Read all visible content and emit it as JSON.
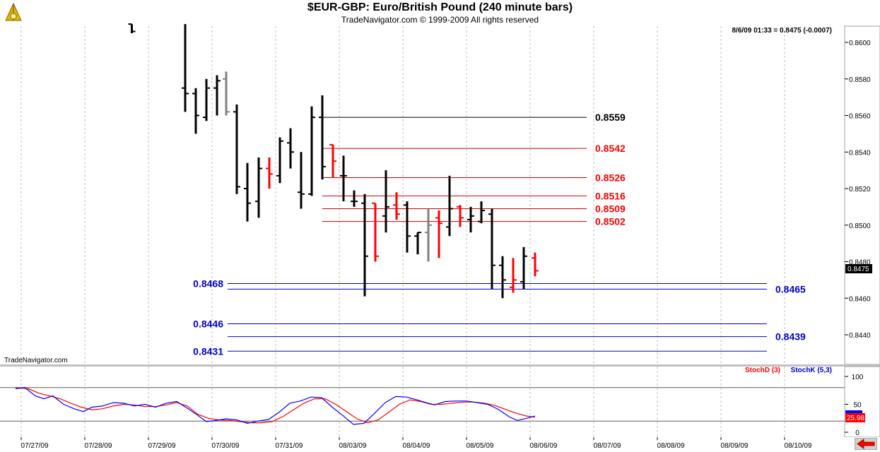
{
  "header": {
    "title": "$EUR-GBP:  Euro/British Pound  (240 minute bars)",
    "copyright": "TradeNavigator.com © 1999-2009 All rights reserved"
  },
  "price_panel": {
    "readout": "8/6/09 01:33 = 0.8475 (-0.0007)",
    "watermark": "TradeNavigator.com",
    "last_price_label": "0.8475"
  },
  "stoch_panel": {
    "legend_d": "StochD (3)",
    "legend_k": "StochK (5,3)",
    "last_value_label": "25.98"
  },
  "colors": {
    "up_bar": "#000000",
    "down_bar": "#ff0000",
    "neutral_bar": "#808080",
    "resistance": "#cc0000",
    "support": "#0000cc",
    "stoch_d": "#ff0000",
    "stoch_k": "#0000ff"
  },
  "chart_data": [
    {
      "type": "ohlc",
      "title": "$EUR-GBP:  Euro/British Pound  (240 minute bars)",
      "yticks": [
        "0.8600",
        "0.8580",
        "0.8560",
        "0.8540",
        "0.8520",
        "0.8500",
        "0.8480",
        "0.8460",
        "0.8440"
      ],
      "ylim": [
        0.842,
        0.861
      ],
      "xticks": [
        "07/27/09",
        "07/28/09",
        "07/29/09",
        "07/30/09",
        "07/31/09",
        "08/03/09",
        "08/04/09",
        "08/05/09",
        "08/06/09",
        "08/07/09",
        "08/08/09",
        "08/09/09",
        "08/10/09"
      ],
      "bars": [
        {
          "x": 186.5,
          "o": 0.861,
          "h": 0.861,
          "l": 0.8605,
          "c": 0.8606,
          "color": "black"
        },
        {
          "x": 262,
          "o": 0.8575,
          "h": 0.861,
          "l": 0.8562,
          "c": 0.8572,
          "color": "black"
        },
        {
          "x": 277,
          "o": 0.8572,
          "h": 0.8575,
          "l": 0.855,
          "c": 0.856,
          "color": "black"
        },
        {
          "x": 292,
          "o": 0.8559,
          "h": 0.858,
          "l": 0.8557,
          "c": 0.8575,
          "color": "black"
        },
        {
          "x": 307,
          "o": 0.8575,
          "h": 0.8582,
          "l": 0.856,
          "c": 0.8579,
          "color": "black"
        },
        {
          "x": 320,
          "o": 0.858,
          "h": 0.8584,
          "l": 0.856,
          "c": 0.8562,
          "color": "gray"
        },
        {
          "x": 335,
          "o": 0.8562,
          "h": 0.8566,
          "l": 0.8517,
          "c": 0.8521,
          "color": "black"
        },
        {
          "x": 350,
          "o": 0.852,
          "h": 0.8534,
          "l": 0.8502,
          "c": 0.8512,
          "color": "black"
        },
        {
          "x": 366,
          "o": 0.8513,
          "h": 0.8537,
          "l": 0.8504,
          "c": 0.8531,
          "color": "black"
        },
        {
          "x": 381,
          "o": 0.8531,
          "h": 0.8537,
          "l": 0.852,
          "c": 0.8528,
          "color": "red"
        },
        {
          "x": 396,
          "o": 0.8527,
          "h": 0.8548,
          "l": 0.8523,
          "c": 0.8546,
          "color": "black"
        },
        {
          "x": 411,
          "o": 0.8545,
          "h": 0.8553,
          "l": 0.8531,
          "c": 0.854,
          "color": "black"
        },
        {
          "x": 426,
          "o": 0.8518,
          "h": 0.854,
          "l": 0.8509,
          "c": 0.8517,
          "color": "black"
        },
        {
          "x": 441,
          "o": 0.8517,
          "h": 0.8565,
          "l": 0.8516,
          "c": 0.8559,
          "color": "black"
        },
        {
          "x": 456,
          "o": 0.8559,
          "h": 0.8571,
          "l": 0.8525,
          "c": 0.8532,
          "color": "black"
        },
        {
          "x": 471,
          "o": 0.8544,
          "h": 0.8544,
          "l": 0.8526,
          "c": 0.8535,
          "color": "red"
        },
        {
          "x": 486,
          "o": 0.8527,
          "h": 0.8538,
          "l": 0.8513,
          "c": 0.8527,
          "color": "black"
        },
        {
          "x": 501,
          "o": 0.8513,
          "h": 0.8519,
          "l": 0.851,
          "c": 0.8513,
          "color": "black"
        },
        {
          "x": 516,
          "o": 0.8512,
          "h": 0.8517,
          "l": 0.8461,
          "c": 0.8483,
          "color": "black"
        },
        {
          "x": 531,
          "o": 0.8512,
          "h": 0.8512,
          "l": 0.848,
          "c": 0.8483,
          "color": "red"
        },
        {
          "x": 546,
          "o": 0.8505,
          "h": 0.853,
          "l": 0.8496,
          "c": 0.851,
          "color": "black"
        },
        {
          "x": 561,
          "o": 0.8511,
          "h": 0.8518,
          "l": 0.8503,
          "c": 0.8506,
          "color": "red"
        },
        {
          "x": 576,
          "o": 0.8511,
          "h": 0.8513,
          "l": 0.8485,
          "c": 0.8494,
          "color": "black"
        },
        {
          "x": 591,
          "o": 0.8494,
          "h": 0.8496,
          "l": 0.8484,
          "c": 0.8496,
          "color": "black"
        },
        {
          "x": 606,
          "o": 0.8496,
          "h": 0.8509,
          "l": 0.848,
          "c": 0.85,
          "color": "gray"
        },
        {
          "x": 621,
          "o": 0.8504,
          "h": 0.8508,
          "l": 0.8482,
          "c": 0.8501,
          "color": "red"
        },
        {
          "x": 636,
          "o": 0.8499,
          "h": 0.8527,
          "l": 0.8494,
          "c": 0.8509,
          "color": "black"
        },
        {
          "x": 651,
          "o": 0.851,
          "h": 0.8511,
          "l": 0.8499,
          "c": 0.8504,
          "color": "red"
        },
        {
          "x": 666,
          "o": 0.8503,
          "h": 0.851,
          "l": 0.8496,
          "c": 0.8505,
          "color": "black"
        },
        {
          "x": 681,
          "o": 0.8502,
          "h": 0.8513,
          "l": 0.8501,
          "c": 0.8508,
          "color": "black"
        },
        {
          "x": 696,
          "o": 0.8506,
          "h": 0.8509,
          "l": 0.8465,
          "c": 0.8478,
          "color": "black"
        },
        {
          "x": 711,
          "o": 0.8478,
          "h": 0.8483,
          "l": 0.846,
          "c": 0.847,
          "color": "black"
        },
        {
          "x": 726,
          "o": 0.8466,
          "h": 0.8482,
          "l": 0.8463,
          "c": 0.847,
          "color": "red"
        },
        {
          "x": 741,
          "o": 0.8469,
          "h": 0.8488,
          "l": 0.8465,
          "c": 0.8483,
          "color": "black"
        },
        {
          "x": 757,
          "o": 0.8482,
          "h": 0.8485,
          "l": 0.8472,
          "c": 0.8475,
          "color": "red"
        }
      ],
      "levels": [
        {
          "value": "0.8559",
          "role": "resistance-top",
          "x1": 456,
          "x2": 830,
          "label_side": "right"
        },
        {
          "value": "0.8542",
          "role": "resistance",
          "x1": 456,
          "x2": 830,
          "label_side": "right"
        },
        {
          "value": "0.8526",
          "role": "resistance",
          "x1": 456,
          "x2": 830,
          "label_side": "right"
        },
        {
          "value": "0.8516",
          "role": "resistance",
          "x1": 456,
          "x2": 830,
          "label_side": "right"
        },
        {
          "value": "0.8509",
          "role": "resistance",
          "x1": 456,
          "x2": 830,
          "label_side": "right"
        },
        {
          "value": "0.8502",
          "role": "resistance",
          "x1": 456,
          "x2": 830,
          "label_side": "right"
        },
        {
          "value": "0.8468",
          "role": "support",
          "x1": 322,
          "x2": 1085,
          "label_side": "left"
        },
        {
          "value": "0.8465",
          "role": "support",
          "x1": 322,
          "x2": 1085,
          "label_side": "right"
        },
        {
          "value": "0.8446",
          "role": "support",
          "x1": 322,
          "x2": 1085,
          "label_side": "left"
        },
        {
          "value": "0.8439",
          "role": "support",
          "x1": 322,
          "x2": 1085,
          "label_side": "right"
        },
        {
          "value": "0.8431",
          "role": "support",
          "x1": 322,
          "x2": 1085,
          "label_side": "left"
        }
      ]
    },
    {
      "type": "line",
      "yticks": [
        "100",
        "50",
        "0"
      ],
      "ylim": [
        0,
        100
      ],
      "reference_lines": [
        80,
        20
      ],
      "series": [
        {
          "name": "StochD (3)",
          "color": "#ff0000",
          "points": [
            [
              22,
              80
            ],
            [
              40,
              78
            ],
            [
              55,
              70
            ],
            [
              70,
              65
            ],
            [
              85,
              60
            ],
            [
              100,
              52
            ],
            [
              115,
              45
            ],
            [
              130,
              40
            ],
            [
              145,
              42
            ],
            [
              160,
              47
            ],
            [
              175,
              50
            ],
            [
              190,
              49
            ],
            [
              205,
              46
            ],
            [
              220,
              46
            ],
            [
              235,
              49
            ],
            [
              250,
              53
            ],
            [
              265,
              47
            ],
            [
              280,
              32
            ],
            [
              295,
              25
            ],
            [
              310,
              22
            ],
            [
              325,
              21
            ],
            [
              340,
              19
            ],
            [
              355,
              17
            ],
            [
              370,
              17
            ],
            [
              385,
              19
            ],
            [
              400,
              28
            ],
            [
              415,
              40
            ],
            [
              430,
              52
            ],
            [
              445,
              60
            ],
            [
              460,
              60
            ],
            [
              475,
              50
            ],
            [
              490,
              37
            ],
            [
              505,
              24
            ],
            [
              520,
              17
            ],
            [
              535,
              22
            ],
            [
              550,
              36
            ],
            [
              565,
              50
            ],
            [
              580,
              58
            ],
            [
              595,
              55
            ],
            [
              610,
              50
            ],
            [
              625,
              50
            ],
            [
              640,
              52
            ],
            [
              655,
              54
            ],
            [
              670,
              54
            ],
            [
              685,
              52
            ],
            [
              700,
              48
            ],
            [
              715,
              41
            ],
            [
              730,
              34
            ],
            [
              745,
              29
            ],
            [
              757,
              27
            ]
          ]
        },
        {
          "name": "StochK (5,3)",
          "color": "#0000ff",
          "points": [
            [
              22,
              78
            ],
            [
              35,
              80
            ],
            [
              50,
              65
            ],
            [
              62,
              60
            ],
            [
              75,
              65
            ],
            [
              90,
              50
            ],
            [
              105,
              42
            ],
            [
              118,
              37
            ],
            [
              130,
              45
            ],
            [
              145,
              47
            ],
            [
              160,
              53
            ],
            [
              175,
              52
            ],
            [
              190,
              47
            ],
            [
              205,
              50
            ],
            [
              220,
              45
            ],
            [
              235,
              52
            ],
            [
              250,
              55
            ],
            [
              265,
              43
            ],
            [
              278,
              32
            ],
            [
              292,
              19
            ],
            [
              305,
              21
            ],
            [
              320,
              24
            ],
            [
              335,
              22
            ],
            [
              350,
              16
            ],
            [
              365,
              20
            ],
            [
              380,
              23
            ],
            [
              395,
              36
            ],
            [
              410,
              52
            ],
            [
              425,
              56
            ],
            [
              440,
              63
            ],
            [
              455,
              62
            ],
            [
              470,
              45
            ],
            [
              485,
              30
            ],
            [
              500,
              14
            ],
            [
              515,
              16
            ],
            [
              530,
              34
            ],
            [
              545,
              53
            ],
            [
              560,
              64
            ],
            [
              575,
              63
            ],
            [
              590,
              58
            ],
            [
              600,
              54
            ],
            [
              615,
              49
            ],
            [
              630,
              55
            ],
            [
              645,
              56
            ],
            [
              660,
              56
            ],
            [
              675,
              53
            ],
            [
              690,
              50
            ],
            [
              705,
              41
            ],
            [
              720,
              28
            ],
            [
              732,
              21
            ],
            [
              745,
              25
            ],
            [
              757,
              29
            ]
          ]
        }
      ]
    }
  ]
}
